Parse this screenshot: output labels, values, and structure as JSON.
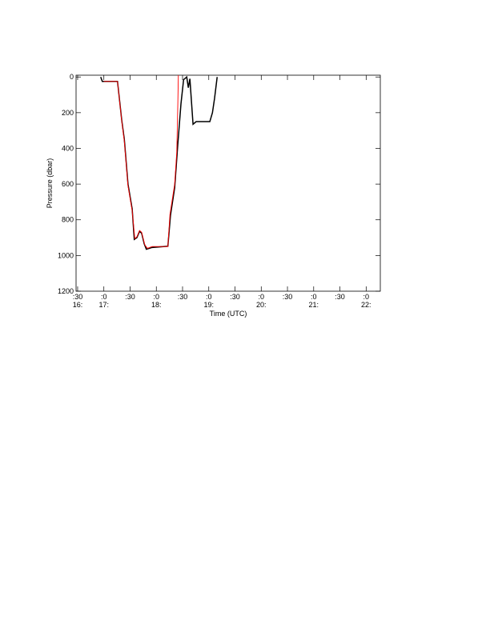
{
  "chart_data": {
    "type": "line",
    "x_label": "Time (UTC)",
    "y_label": "Pressure (dbar)",
    "xlim": [
      16.47,
      22.27
    ],
    "ylim": [
      -10,
      1200
    ],
    "y_inverted": true,
    "xticks": [
      {
        "value": 16.5,
        "label": [
          ":30",
          "16:"
        ]
      },
      {
        "value": 17,
        "label": [
          ":0",
          "17:"
        ]
      },
      {
        "value": 17.5,
        "label": [
          ":30"
        ]
      },
      {
        "value": 18,
        "label": [
          ":0",
          "18:"
        ]
      },
      {
        "value": 18.5,
        "label": [
          ":30"
        ]
      },
      {
        "value": 19,
        "label": [
          ":0",
          "19:"
        ]
      },
      {
        "value": 19.5,
        "label": [
          ":30"
        ]
      },
      {
        "value": 20,
        "label": [
          ":0",
          "20:"
        ]
      },
      {
        "value": 20.5,
        "label": [
          ":30"
        ]
      },
      {
        "value": 21,
        "label": [
          ":0",
          "21:"
        ]
      },
      {
        "value": 21.5,
        "label": [
          ":30"
        ]
      },
      {
        "value": 22,
        "label": [
          ":0",
          "22:"
        ]
      }
    ],
    "yticks": [
      0,
      200,
      400,
      600,
      800,
      1000,
      1200
    ],
    "series": [
      {
        "color": "#000000",
        "x": [
          16.94,
          16.97,
          17.26,
          17.34,
          17.39,
          17.46,
          17.54,
          17.58,
          17.63,
          17.68,
          17.72,
          17.77,
          17.81,
          17.92,
          18.22,
          18.27,
          18.35,
          18.41,
          18.47,
          18.52,
          18.58,
          18.61,
          18.64,
          18.7,
          18.76,
          19.02,
          19.07,
          19.11,
          19.16
        ],
        "values": [
          0,
          25,
          25,
          240,
          350,
          600,
          740,
          910,
          900,
          865,
          875,
          935,
          965,
          955,
          948,
          775,
          620,
          375,
          150,
          15,
          0,
          60,
          10,
          265,
          250,
          250,
          200,
          120,
          0
        ]
      },
      {
        "color": "#ff0000",
        "x": [
          17.0,
          17.26,
          17.34,
          17.39,
          17.46,
          17.54,
          17.59,
          17.63,
          17.68,
          17.72,
          17.78,
          17.83,
          17.92,
          18.22,
          18.26,
          18.35,
          18.39,
          18.41,
          18.42
        ],
        "values": [
          25,
          25,
          245,
          360,
          610,
          750,
          905,
          895,
          860,
          870,
          940,
          960,
          950,
          950,
          770,
          600,
          420,
          150,
          -10
        ]
      }
    ]
  }
}
